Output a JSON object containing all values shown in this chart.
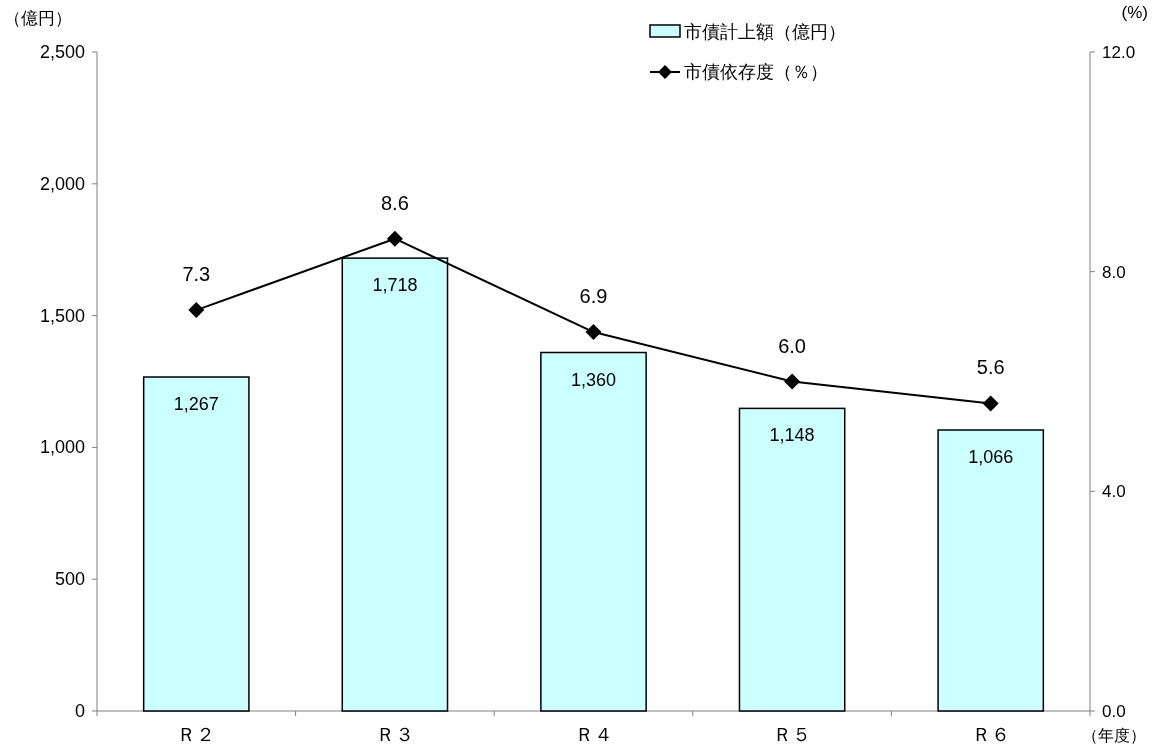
{
  "chart_data": {
    "type": "bar",
    "categories": [
      "Ｒ２",
      "Ｒ３",
      "Ｒ４",
      "Ｒ５",
      "Ｒ６"
    ],
    "ylabel": "（億円）",
    "y2label": "(%)",
    "xlabel": "（年度）",
    "ylim": [
      0,
      2500
    ],
    "yticks": [
      0,
      500,
      {
        "value": 1000,
        "label": "1,000"
      },
      {
        "value": 1500,
        "label": "1,500"
      },
      {
        "value": 2000,
        "label": "2,000"
      },
      {
        "value": 2500,
        "label": "2,500"
      }
    ],
    "y2lim": [
      0,
      12
    ],
    "y2ticks": [
      {
        "value": 0,
        "label": "0.0"
      },
      {
        "value": 4,
        "label": "4.0"
      },
      {
        "value": 8,
        "label": "8.0"
      },
      {
        "value": 12,
        "label": "12.0"
      }
    ],
    "legend": "top",
    "data_labels": true,
    "grid": false,
    "series": [
      {
        "name": "市債計上額（億円）",
        "color": "#ccffff",
        "values": [
          1267,
          1718,
          1360,
          1148,
          1066
        ],
        "value_labels": [
          "1,267",
          "1,718",
          "1,360",
          "1,148",
          "1,066"
        ]
      },
      {
        "name": "市債依存度（％）",
        "type": "line",
        "axis": "y2",
        "color": "#000000",
        "marker": "diamond",
        "line_style": "solid",
        "values": [
          7.3,
          8.6,
          6.9,
          6.0,
          5.6
        ],
        "value_labels": [
          "7.3",
          "8.6",
          "6.9",
          "6.0",
          "5.6"
        ]
      }
    ]
  }
}
